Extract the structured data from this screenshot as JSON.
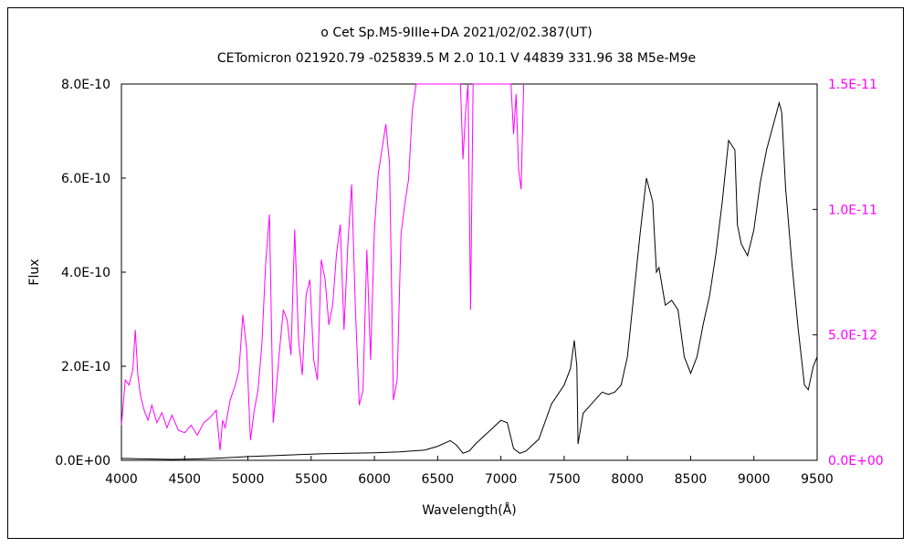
{
  "chart_data": {
    "type": "line",
    "title": "ο Cet    Sp.M5-9IIIe+DA    2021/02/02.387(UT)",
    "subtitle": "CETomicron 021920.79 -025839.5 M 2.0 10.1 V 44839 331.96 38 M5e-M9e",
    "xlabel": "Wavelength(Å)",
    "ylabel": "Flux",
    "xlim": [
      4000,
      9500
    ],
    "ylim": [
      0,
      8e-10
    ],
    "y2lim": [
      0,
      1.5e-11
    ],
    "grid": false,
    "x_ticks": [
      "4000",
      "4500",
      "5000",
      "5500",
      "6000",
      "6500",
      "7000",
      "7500",
      "8000",
      "8500",
      "9000",
      "9500"
    ],
    "y_ticks": [
      "0.0E+00",
      "2.0E-10",
      "4.0E-10",
      "6.0E-10",
      "8.0E-10"
    ],
    "y2_ticks": [
      "0.0E+00",
      "5.0E-12",
      "1.0E-11",
      "1.5E-11"
    ],
    "colors": {
      "primary": "#000000",
      "secondary": "#ff00ff"
    },
    "series": [
      {
        "axis": "left",
        "color": "#000000",
        "x": [
          4000,
          4200,
          4400,
          4600,
          4800,
          5000,
          5200,
          5400,
          5600,
          5800,
          6000,
          6200,
          6400,
          6500,
          6600,
          6650,
          6700,
          6750,
          6800,
          6900,
          7000,
          7050,
          7100,
          7150,
          7200,
          7300,
          7400,
          7500,
          7550,
          7580,
          7600,
          7610,
          7650,
          7700,
          7750,
          7800,
          7850,
          7900,
          7950,
          8000,
          8050,
          8100,
          8150,
          8200,
          8230,
          8250,
          8300,
          8350,
          8400,
          8450,
          8500,
          8550,
          8600,
          8650,
          8700,
          8750,
          8800,
          8850,
          8870,
          8900,
          8950,
          9000,
          9050,
          9100,
          9150,
          9200,
          9220,
          9250,
          9300,
          9350,
          9400,
          9430,
          9470,
          9500
        ],
        "y": [
          4e-12,
          3e-12,
          2e-12,
          3e-12,
          5e-12,
          8e-12,
          1e-11,
          1.2e-11,
          1.4e-11,
          1.5e-11,
          1.6e-11,
          1.8e-11,
          2.2e-11,
          3e-11,
          4.2e-11,
          3.2e-11,
          1.5e-11,
          2e-11,
          3.5e-11,
          6e-11,
          8.5e-11,
          8e-11,
          2.5e-11,
          1.5e-11,
          2e-11,
          4.5e-11,
          1.2e-10,
          1.6e-10,
          1.95e-10,
          2.55e-10,
          2e-10,
          3.5e-11,
          1e-10,
          1.15e-10,
          1.3e-10,
          1.45e-10,
          1.4e-10,
          1.45e-10,
          1.6e-10,
          2.2e-10,
          3.5e-10,
          4.8e-10,
          6e-10,
          5.5e-10,
          4e-10,
          4.1e-10,
          3.3e-10,
          3.4e-10,
          3.2e-10,
          2.2e-10,
          1.85e-10,
          2.2e-10,
          2.9e-10,
          3.5e-10,
          4.4e-10,
          5.5e-10,
          6.8e-10,
          6.6e-10,
          5e-10,
          4.6e-10,
          4.35e-10,
          4.9e-10,
          5.9e-10,
          6.6e-10,
          7.1e-10,
          7.6e-10,
          7.4e-10,
          5.8e-10,
          4.2e-10,
          2.8e-10,
          1.6e-10,
          1.5e-10,
          2e-10,
          2.2e-10
        ]
      },
      {
        "axis": "right",
        "color": "#ff00ff",
        "x": [
          4000,
          4030,
          4060,
          4090,
          4110,
          4130,
          4150,
          4180,
          4210,
          4240,
          4280,
          4320,
          4360,
          4400,
          4450,
          4500,
          4550,
          4600,
          4650,
          4700,
          4750,
          4780,
          4800,
          4820,
          4860,
          4900,
          4930,
          4960,
          4990,
          5020,
          5050,
          5080,
          5110,
          5140,
          5170,
          5200,
          5220,
          5250,
          5280,
          5310,
          5340,
          5370,
          5400,
          5430,
          5460,
          5490,
          5520,
          5550,
          5580,
          5610,
          5640,
          5670,
          5700,
          5730,
          5760,
          5790,
          5820,
          5850,
          5880,
          5910,
          5940,
          5970,
          6000,
          6030,
          6060,
          6090,
          6120,
          6150,
          6180,
          6210,
          6240,
          6270,
          6300,
          6330,
          6360,
          6390,
          6420,
          6450,
          6480,
          6500,
          6520,
          6560,
          6600,
          6640,
          6680,
          6700,
          6720,
          6740,
          6760,
          6780,
          6800,
          6850,
          6900,
          6950,
          7000,
          7050,
          7080,
          7100,
          7120,
          7140,
          7160,
          7180
        ],
        "y": [
          1.4e-12,
          3.2e-12,
          3e-12,
          3.6e-12,
          5.2e-12,
          3.4e-12,
          2.6e-12,
          2e-12,
          1.6e-12,
          2.2e-12,
          1.5e-12,
          1.9e-12,
          1.3e-12,
          1.8e-12,
          1.2e-12,
          1.1e-12,
          1.4e-12,
          1e-12,
          1.5e-12,
          1.7e-12,
          2e-12,
          4e-13,
          1.6e-12,
          1.3e-12,
          2.4e-12,
          3e-12,
          3.6e-12,
          5.8e-12,
          4.4e-12,
          8e-13,
          2e-12,
          2.8e-12,
          4.6e-12,
          7.8e-12,
          9.8e-12,
          1.5e-12,
          2.6e-12,
          4.4e-12,
          6e-12,
          5.6e-12,
          4.2e-12,
          9.2e-12,
          4.8e-12,
          3.4e-12,
          6.6e-12,
          7.2e-12,
          4e-12,
          3.2e-12,
          8e-12,
          7.2e-12,
          5.4e-12,
          6.2e-12,
          8.2e-12,
          9.4e-12,
          5.2e-12,
          8.6e-12,
          1.1e-11,
          6e-12,
          2.2e-12,
          2.8e-12,
          8.4e-12,
          4e-12,
          9.2e-12,
          1.14e-11,
          1.24e-11,
          1.34e-11,
          1.18e-11,
          2.4e-12,
          3.2e-12,
          9e-12,
          1.02e-11,
          1.12e-11,
          1.4e-11,
          1.5e-11,
          1.5e-11,
          1.5e-11,
          1.5e-11,
          1.5e-11,
          1.5e-11,
          1.5e-11,
          1.5e-11,
          1.5e-11,
          1.5e-11,
          1.5e-11,
          1.5e-11,
          1.2e-11,
          1.38e-11,
          1.5e-11,
          6e-12,
          1.5e-11,
          1.5e-11,
          1.5e-11,
          1.5e-11,
          1.5e-11,
          1.5e-11,
          1.5e-11,
          1.5e-11,
          1.3e-11,
          1.46e-11,
          1.16e-11,
          1.08e-11,
          1.5e-11
        ]
      }
    ]
  }
}
